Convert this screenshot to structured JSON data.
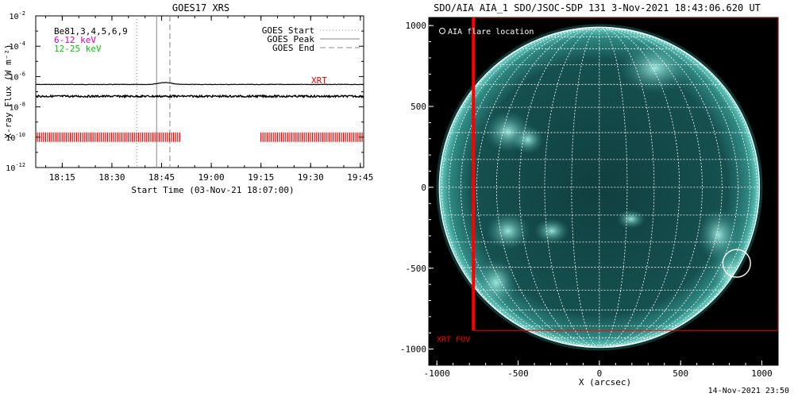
{
  "chart_data": [
    {
      "type": "line",
      "title": "GOES17 XRS",
      "xlabel": "Start Time (03-Nov-21 18:07:00)",
      "ylabel": "X-ray Flux (W m⁻²)",
      "y_scale": "log",
      "ylim": [
        1e-12,
        0.01
      ],
      "xlim_minutes_from_start": [
        0,
        99
      ],
      "x_tick_labels": [
        "18:15",
        "18:30",
        "18:45",
        "19:00",
        "19:15",
        "19:30",
        "19:45"
      ],
      "x_tick_minutes": [
        8,
        23,
        38,
        53,
        68,
        83,
        98
      ],
      "y_tick_labels": [
        {
          "mantissa": "10",
          "exponent": "-2",
          "value": 0.01
        },
        {
          "mantissa": "10",
          "exponent": "-4",
          "value": 0.0001
        },
        {
          "mantissa": "10",
          "exponent": "-6",
          "value": 1e-06
        },
        {
          "mantissa": "10",
          "exponent": "-8",
          "value": 1e-08
        },
        {
          "mantissa": "10",
          "exponent": "-10",
          "value": 1e-10
        },
        {
          "mantissa": "10",
          "exponent": "-12",
          "value": 1e-12
        }
      ],
      "top_left_labels": [
        {
          "text": "Be81,3,4,5,6,9",
          "color": "#000000"
        },
        {
          "text": "6-12 keV",
          "color": "#cc00cc"
        },
        {
          "text": "12-25 keV",
          "color": "#00cc00"
        }
      ],
      "legend": [
        {
          "label": "GOES Start",
          "style": "dotted"
        },
        {
          "label": "GOES Peak",
          "style": "solid"
        },
        {
          "label": "GOES End",
          "style": "dashed"
        }
      ],
      "legend_position": "top-right",
      "series": [
        {
          "name": "",
          "color": "#000000",
          "approx_level": 3e-07,
          "bump_at_minute": 39,
          "bump_level": 4e-07
        },
        {
          "name": "",
          "color": "#000000",
          "approx_level": 5e-08
        }
      ],
      "event_lines_minutes": {
        "start": 30.5,
        "peak": 36.5,
        "end": 40.5
      },
      "xrt_label": "XRT",
      "xrt_label_color": "#ff0000",
      "xrt_exposure_level": 1e-10,
      "xrt_exposure_segments_minutes": [
        [
          0,
          43.5
        ],
        [
          67.5,
          99
        ]
      ]
    },
    {
      "type": "heatmap",
      "title": "SDO/AIA AIA_1 SDO/JSOC-SDP 131  3-Nov-2021 18:43:06.620 UT",
      "xlabel": "X (arcsec)",
      "ylabel": "",
      "xlim": [
        -1050,
        1100
      ],
      "ylim": [
        -1100,
        1050
      ],
      "x_tick_labels": [
        "-1000",
        "-500",
        "0",
        "500",
        "1000"
      ],
      "x_tick_values": [
        -1000,
        -500,
        0,
        500,
        1000
      ],
      "y_tick_labels": [
        "1000",
        "500",
        "0",
        "-500",
        "-1000"
      ],
      "y_tick_values": [
        1000,
        500,
        0,
        -500,
        -1000
      ],
      "solar_radius_arcsec": 985,
      "flare_legend": "AIA flare location",
      "flare_location_arcsec": {
        "x": 845,
        "y": -470,
        "radius": 85
      },
      "xrt_fov_label": "XRT FOV",
      "xrt_fov_arcsec": {
        "x_min": -775,
        "x_max": 1100,
        "y_min": -885,
        "y_max": 1050
      },
      "grid": "heliographic",
      "colors": {
        "background": "#000000",
        "disk": "#0d3d3f",
        "bright": "#7fe0d5",
        "overlay": "#ff0000",
        "grid": "#ffffff"
      }
    }
  ],
  "footer": {
    "timestamp": "14-Nov-2021 23:50"
  }
}
